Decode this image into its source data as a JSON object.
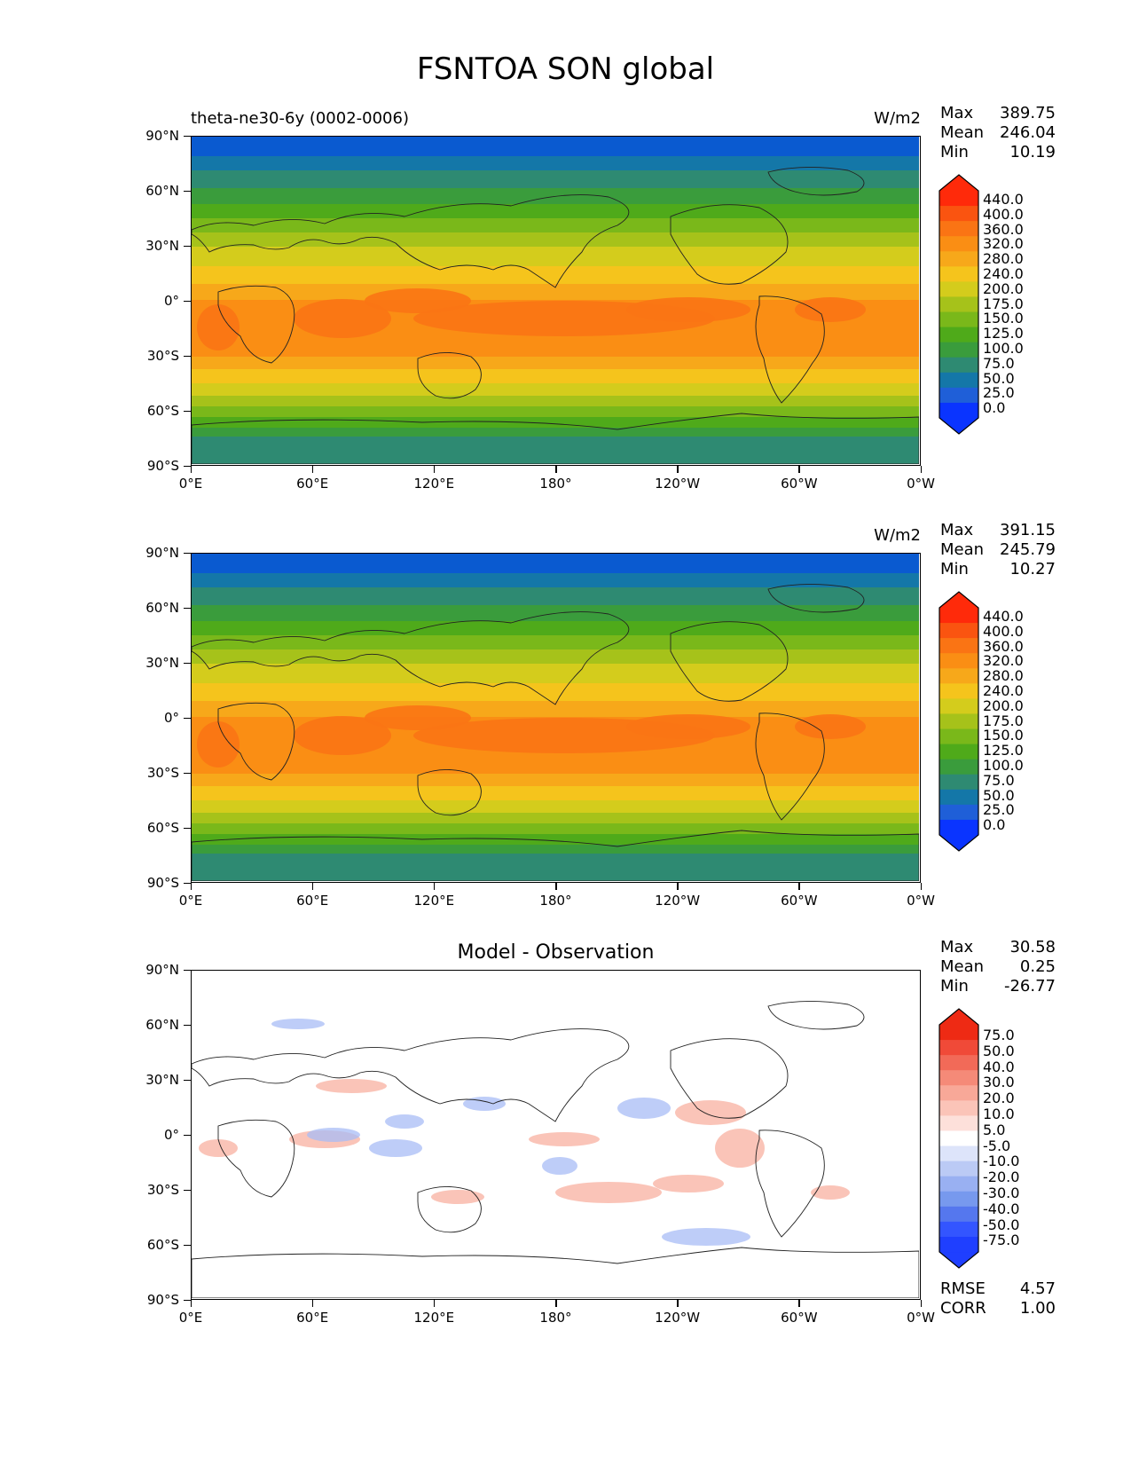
{
  "figure_title": "FSNTOA SON global",
  "panels": [
    {
      "title_left": "theta-ne30-6y (0002-0006)",
      "title_center": "",
      "units": "W/m2",
      "stats": {
        "max_label": "Max",
        "max": "389.75",
        "mean_label": "Mean",
        "mean": "246.04",
        "min_label": "Min",
        "min": "10.19"
      },
      "colorbar": {
        "labels": [
          "440.0",
          "400.0",
          "360.0",
          "320.0",
          "280.0",
          "240.0",
          "200.0",
          "175.0",
          "150.0",
          "125.0",
          "100.0",
          "75.0",
          "50.0",
          "25.0",
          "0.0"
        ]
      },
      "extra": null
    },
    {
      "title_left": "",
      "title_center": "",
      "units": "W/m2",
      "stats": {
        "max_label": "Max",
        "max": "391.15",
        "mean_label": "Mean",
        "mean": "245.79",
        "min_label": "Min",
        "min": "10.27"
      },
      "colorbar": {
        "labels": [
          "440.0",
          "400.0",
          "360.0",
          "320.0",
          "280.0",
          "240.0",
          "200.0",
          "175.0",
          "150.0",
          "125.0",
          "100.0",
          "75.0",
          "50.0",
          "25.0",
          "0.0"
        ]
      },
      "extra": null
    },
    {
      "title_left": "",
      "title_center": "Model - Observation",
      "units": "",
      "stats": {
        "max_label": "Max",
        "max": "30.58",
        "mean_label": "Mean",
        "mean": "0.25",
        "min_label": "Min",
        "min": "-26.77"
      },
      "colorbar": {
        "labels": [
          "75.0",
          "50.0",
          "40.0",
          "30.0",
          "20.0",
          "10.0",
          "5.0",
          "-5.0",
          "-10.0",
          "-20.0",
          "-30.0",
          "-40.0",
          "-50.0",
          "-75.0"
        ]
      },
      "extra": {
        "rmse_label": "RMSE",
        "rmse": "4.57",
        "corr_label": "CORR",
        "corr": "1.00"
      }
    }
  ],
  "axes": {
    "lat_ticks": [
      "90°N",
      "60°N",
      "30°N",
      "0°",
      "30°S",
      "60°S",
      "90°S"
    ],
    "lon_ticks": [
      "0°E",
      "60°E",
      "120°E",
      "180°",
      "120°W",
      "60°W",
      "0°W"
    ]
  },
  "colors": {
    "field_scale": [
      "#0a34ff",
      "#1f5fd8",
      "#1477a8",
      "#2e8a72",
      "#3a9c3c",
      "#4faa1a",
      "#7ab81a",
      "#a6c21a",
      "#d4cc1c",
      "#f5c41c",
      "#f7a81a",
      "#fa8e14",
      "#fa7414",
      "#fa5410",
      "#ff2a0a"
    ],
    "diff_scale": [
      "#1f3fff",
      "#3355ff",
      "#5577ee",
      "#7799ee",
      "#99b0f2",
      "#bbcaf5",
      "#dde4fa",
      "#ffffff",
      "#fde0da",
      "#fbc4b8",
      "#f8a898",
      "#f58a78",
      "#f26a58",
      "#f04a38",
      "#ee2a14"
    ]
  }
}
